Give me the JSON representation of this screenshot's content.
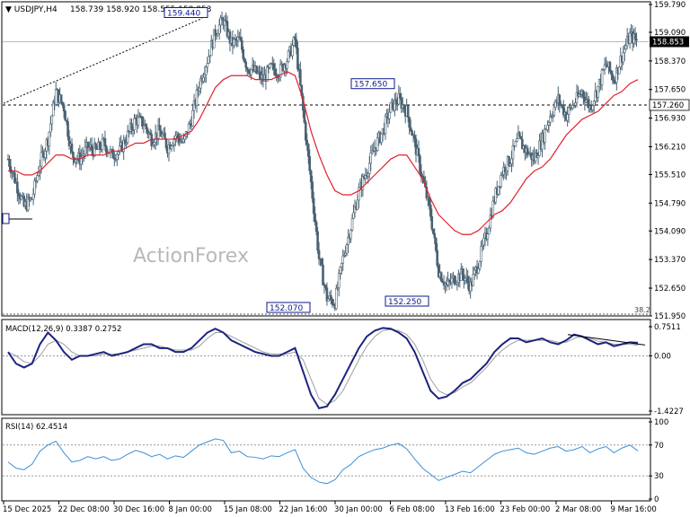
{
  "header": {
    "symbol": "USDJPY,H4",
    "ohlc": "158.739 158.920 158.555 158.853"
  },
  "watermark": "ActionForex",
  "colors": {
    "candle": "#4a6272",
    "ma": "#e0202e",
    "macd_main": "#1a237e",
    "macd_signal": "#9e9e9e",
    "rsi": "#3b8fd8",
    "label_box": "#0b1a8c",
    "price_tag": "#ffffff",
    "axis_text": "#000000",
    "grid": "#c8c8c8"
  },
  "chart_data": [
    {
      "type": "candlestick",
      "name": "price",
      "ylim": [
        151.95,
        159.79
      ],
      "y_ticks": [
        159.79,
        159.09,
        158.37,
        157.65,
        156.93,
        156.21,
        155.51,
        154.79,
        154.09,
        153.37,
        152.65,
        151.95
      ],
      "y_tick_labels": [
        "159.790",
        "159.090",
        "158.370",
        "157.650",
        "156.930",
        "156.210",
        "155.510",
        "154.790",
        "154.090",
        "153.370",
        "152.650",
        "151.950"
      ],
      "last_price_label": "158.853",
      "last_price": 158.853,
      "dashed_level_label": "157.260",
      "dashed_level": 157.26,
      "fib_label": "38.2",
      "price_labels": [
        {
          "text": "159.440",
          "value": 159.44
        },
        {
          "text": "157.650",
          "value": 157.65
        },
        {
          "text": "152.070",
          "value": 152.07
        },
        {
          "text": "152.250",
          "value": 152.25
        }
      ],
      "close_path": [
        155.9,
        155.3,
        154.7,
        154.9,
        155.8,
        156.4,
        157.6,
        157.2,
        156.0,
        155.9,
        156.2,
        156.1,
        156.3,
        156.0,
        156.1,
        156.5,
        156.9,
        156.8,
        156.4,
        156.6,
        156.2,
        156.5,
        156.3,
        156.9,
        157.8,
        158.4,
        159.1,
        159.4,
        158.8,
        158.9,
        158.2,
        158.1,
        157.9,
        158.2,
        158.1,
        158.4,
        158.9,
        157.1,
        155.3,
        153.4,
        152.4,
        152.3,
        153.4,
        154.2,
        155.1,
        155.6,
        156.2,
        156.6,
        157.2,
        157.4,
        157.1,
        156.3,
        155.4,
        154.5,
        153.1,
        152.7,
        152.9,
        153.0,
        152.7,
        153.3,
        154.0,
        154.9,
        155.6,
        155.9,
        156.4,
        156.1,
        155.9,
        156.4,
        157.0,
        157.4,
        157.0,
        157.3,
        157.6,
        157.2,
        157.7,
        158.3,
        157.9,
        158.5,
        159.0,
        158.853
      ],
      "ma_path": [
        155.6,
        155.6,
        155.5,
        155.5,
        155.6,
        155.8,
        156.0,
        156.0,
        155.9,
        155.9,
        156.0,
        156.0,
        156.0,
        156.1,
        156.1,
        156.2,
        156.3,
        156.3,
        156.4,
        156.4,
        156.4,
        156.4,
        156.5,
        156.6,
        156.9,
        157.3,
        157.7,
        157.9,
        158.0,
        158.0,
        158.0,
        157.9,
        157.9,
        157.9,
        158.0,
        158.1,
        158.0,
        157.4,
        156.6,
        156.0,
        155.5,
        155.1,
        155.0,
        155.0,
        155.1,
        155.3,
        155.5,
        155.7,
        155.9,
        156.0,
        156.0,
        155.7,
        155.4,
        154.9,
        154.5,
        154.3,
        154.1,
        154.0,
        154.0,
        154.1,
        154.3,
        154.5,
        154.6,
        154.8,
        155.1,
        155.4,
        155.6,
        155.7,
        155.9,
        156.2,
        156.5,
        156.7,
        156.9,
        157.0,
        157.1,
        157.3,
        157.5,
        157.6,
        157.8,
        157.9
      ]
    },
    {
      "type": "line",
      "name": "MACD(12,26,9) 0.3387 0.2752",
      "ylim": [
        -1.4227,
        0.7511
      ],
      "y_ticks": [
        0.7511,
        0.0,
        -1.4227
      ],
      "y_tick_labels": [
        "0.7511",
        "0.00",
        "-1.4227"
      ],
      "series": [
        {
          "name": "MACD",
          "values": [
            0.1,
            -0.2,
            -0.3,
            -0.2,
            0.3,
            0.6,
            0.4,
            0.1,
            -0.1,
            0.0,
            0.0,
            0.05,
            0.1,
            0.0,
            0.05,
            0.1,
            0.2,
            0.3,
            0.3,
            0.2,
            0.2,
            0.1,
            0.1,
            0.2,
            0.4,
            0.6,
            0.7,
            0.6,
            0.4,
            0.3,
            0.2,
            0.1,
            0.05,
            0.0,
            0.0,
            0.1,
            0.2,
            -0.4,
            -1.0,
            -1.35,
            -1.3,
            -1.0,
            -0.6,
            -0.2,
            0.2,
            0.5,
            0.65,
            0.72,
            0.7,
            0.6,
            0.45,
            0.1,
            -0.4,
            -0.9,
            -1.1,
            -1.05,
            -0.9,
            -0.7,
            -0.6,
            -0.4,
            -0.2,
            0.1,
            0.3,
            0.45,
            0.45,
            0.35,
            0.4,
            0.45,
            0.35,
            0.3,
            0.4,
            0.55,
            0.5,
            0.4,
            0.3,
            0.35,
            0.25,
            0.3,
            0.35,
            0.3387
          ]
        },
        {
          "name": "Signal",
          "values": [
            0.1,
            0.0,
            -0.15,
            -0.2,
            0.0,
            0.3,
            0.4,
            0.3,
            0.1,
            0.0,
            0.0,
            0.0,
            0.05,
            0.05,
            0.05,
            0.1,
            0.15,
            0.2,
            0.25,
            0.25,
            0.2,
            0.15,
            0.15,
            0.15,
            0.25,
            0.45,
            0.6,
            0.6,
            0.5,
            0.4,
            0.3,
            0.2,
            0.1,
            0.05,
            0.05,
            0.05,
            0.1,
            -0.1,
            -0.6,
            -1.1,
            -1.25,
            -1.15,
            -0.9,
            -0.5,
            -0.1,
            0.25,
            0.5,
            0.65,
            0.68,
            0.65,
            0.55,
            0.3,
            -0.1,
            -0.6,
            -0.9,
            -1.0,
            -0.95,
            -0.8,
            -0.7,
            -0.5,
            -0.3,
            -0.05,
            0.15,
            0.3,
            0.4,
            0.4,
            0.4,
            0.4,
            0.4,
            0.35,
            0.35,
            0.45,
            0.5,
            0.45,
            0.38,
            0.35,
            0.3,
            0.3,
            0.3,
            0.2752
          ]
        }
      ]
    },
    {
      "type": "line",
      "name": "RSI(14) 62.4514",
      "ylim": [
        0,
        100
      ],
      "y_ticks": [
        100,
        70,
        30,
        0
      ],
      "y_tick_labels": [
        "100",
        "70",
        "30",
        "0"
      ],
      "series": [
        {
          "name": "RSI",
          "values": [
            48,
            40,
            38,
            45,
            62,
            70,
            75,
            60,
            48,
            50,
            55,
            52,
            55,
            50,
            52,
            58,
            63,
            60,
            55,
            58,
            52,
            56,
            54,
            62,
            70,
            74,
            78,
            76,
            60,
            62,
            55,
            54,
            52,
            56,
            55,
            60,
            64,
            40,
            28,
            22,
            20,
            25,
            38,
            45,
            55,
            60,
            64,
            66,
            70,
            72,
            65,
            52,
            40,
            32,
            24,
            28,
            32,
            36,
            34,
            42,
            50,
            58,
            62,
            64,
            66,
            60,
            58,
            62,
            66,
            68,
            62,
            64,
            68,
            60,
            65,
            68,
            60,
            66,
            70,
            62.4514
          ]
        }
      ]
    }
  ],
  "x_axis": {
    "labels": [
      "15 Dec 2025",
      "22 Dec 08:00",
      "30 Dec 16:00",
      "8 Jan 00:00",
      "15 Jan 08:00",
      "22 Jan 16:00",
      "30 Jan 00:00",
      "6 Feb 08:00",
      "13 Feb 16:00",
      "23 Feb 00:00",
      "2 Mar 08:00",
      "9 Mar 16:00"
    ]
  }
}
